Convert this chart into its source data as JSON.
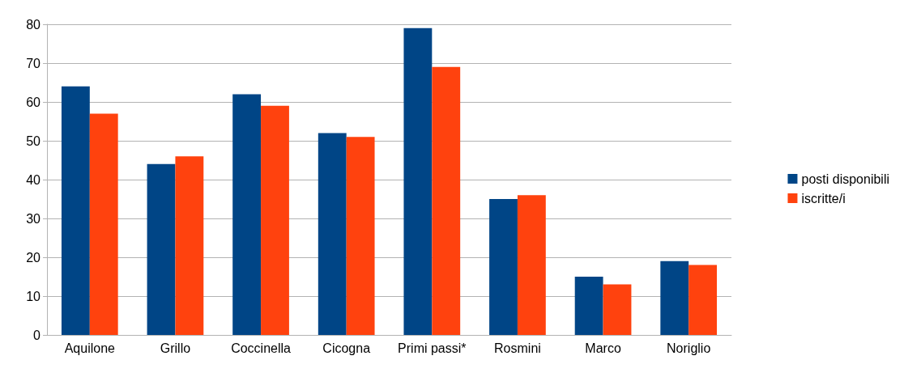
{
  "chart_data": {
    "type": "bar",
    "categories": [
      "Aquilone",
      "Grillo",
      "Coccinella",
      "Cicogna",
      "Primi passi*",
      "Rosmini",
      "Marco",
      "Noriglio"
    ],
    "series": [
      {
        "name": "posti disponibili",
        "color": "#004586",
        "values": [
          64,
          44,
          62,
          52,
          79,
          35,
          15,
          19
        ]
      },
      {
        "name": "iscritte/i",
        "color": "#ff420e",
        "values": [
          57,
          46,
          59,
          51,
          69,
          36,
          13,
          18
        ]
      }
    ],
    "ylim": [
      0,
      80
    ],
    "yticks": [
      0,
      10,
      20,
      30,
      40,
      50,
      60,
      70,
      80
    ],
    "grid": "y",
    "legend": "right"
  }
}
